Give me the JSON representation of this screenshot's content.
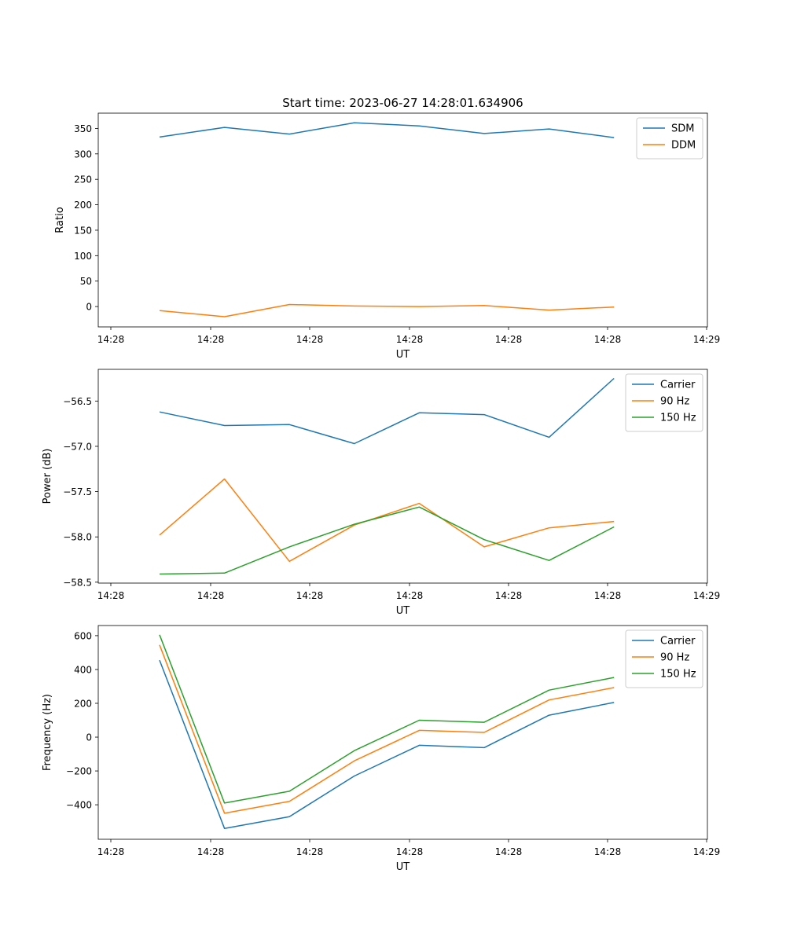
{
  "figure": {
    "title": "Start time: 2023-06-27 14:28:01.634906"
  },
  "chart_data": [
    {
      "type": "line",
      "xlabel": "UT",
      "ylabel": "Ratio",
      "x_ticks": [
        "14:28",
        "14:28",
        "14:28",
        "14:28",
        "14:28",
        "14:28",
        "14:29"
      ],
      "y_ticks": [
        0,
        50,
        100,
        150,
        200,
        250,
        300,
        350
      ],
      "ylim": [
        -40,
        380
      ],
      "grid": false,
      "legend": "top-right",
      "series": [
        {
          "name": "SDM",
          "color": "#1f77b4",
          "values": [
            333,
            352,
            339,
            361,
            355,
            340,
            349,
            332
          ]
        },
        {
          "name": "DDM",
          "color": "#ff7f0e",
          "values": [
            -8,
            -20,
            4,
            1,
            0,
            2,
            -7,
            -1
          ]
        }
      ]
    },
    {
      "type": "line",
      "xlabel": "UT",
      "ylabel": "Power (dB)",
      "x_ticks": [
        "14:28",
        "14:28",
        "14:28",
        "14:28",
        "14:28",
        "14:28",
        "14:29"
      ],
      "y_ticks": [
        -58.5,
        -58.0,
        -57.5,
        -57.0,
        -56.5
      ],
      "y_tick_labels": [
        "−58.5",
        "−58.0",
        "−57.5",
        "−57.0",
        "−56.5"
      ],
      "ylim": [
        -58.51,
        -56.15
      ],
      "grid": false,
      "legend": "top-right",
      "series": [
        {
          "name": "Carrier",
          "color": "#1f77b4",
          "values": [
            -56.62,
            -56.77,
            -56.76,
            -56.97,
            -56.63,
            -56.65,
            -56.9,
            -56.25
          ]
        },
        {
          "name": "90 Hz",
          "color": "#ff7f0e",
          "values": [
            -57.98,
            -57.36,
            -58.27,
            -57.87,
            -57.63,
            -58.11,
            -57.9,
            -57.83
          ]
        },
        {
          "name": "150 Hz",
          "color": "#2ca02c",
          "values": [
            -58.41,
            -58.4,
            -58.11,
            -57.86,
            -57.67,
            -58.03,
            -58.26,
            -57.89
          ]
        }
      ]
    },
    {
      "type": "line",
      "xlabel": "UT",
      "ylabel": "Frequency (Hz)",
      "x_ticks": [
        "14:28",
        "14:28",
        "14:28",
        "14:28",
        "14:28",
        "14:28",
        "14:29"
      ],
      "y_ticks": [
        -400,
        -200,
        0,
        200,
        400,
        600
      ],
      "y_tick_labels": [
        "−400",
        "−200",
        "0",
        "200",
        "400",
        "600"
      ],
      "ylim": [
        -604,
        660
      ],
      "grid": false,
      "legend": "top-right",
      "series": [
        {
          "name": "Carrier",
          "color": "#1f77b4",
          "values": [
            455,
            -540,
            -470,
            -230,
            -48,
            -62,
            130,
            205
          ]
        },
        {
          "name": "90 Hz",
          "color": "#ff7f0e",
          "values": [
            545,
            -450,
            -380,
            -140,
            40,
            28,
            220,
            293
          ]
        },
        {
          "name": "150 Hz",
          "color": "#2ca02c",
          "values": [
            605,
            -390,
            -320,
            -80,
            100,
            88,
            278,
            353
          ]
        }
      ]
    }
  ]
}
